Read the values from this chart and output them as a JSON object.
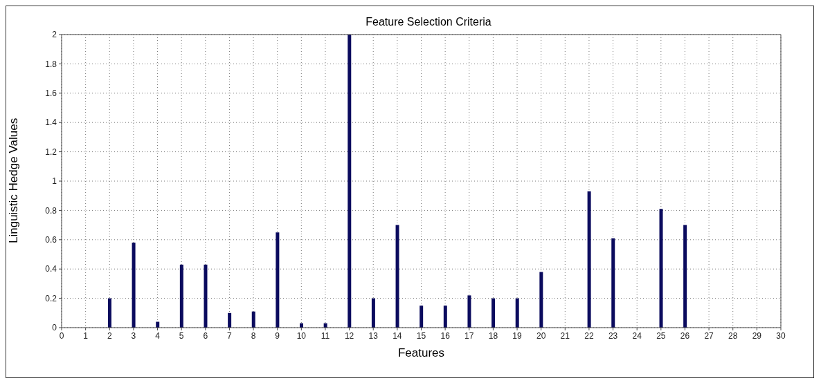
{
  "chart_data": {
    "type": "bar",
    "title": "Feature Selection Criteria",
    "xlabel": "Features",
    "ylabel": "Linguistic Hedge Values",
    "x": [
      2,
      3,
      4,
      5,
      6,
      7,
      8,
      9,
      10,
      11,
      12,
      13,
      14,
      15,
      16,
      17,
      18,
      19,
      20,
      22,
      23,
      25,
      26
    ],
    "values": [
      0.2,
      0.58,
      0.04,
      0.43,
      0.43,
      0.1,
      0.11,
      0.65,
      0.03,
      0.03,
      2.0,
      0.2,
      0.7,
      0.15,
      0.15,
      0.22,
      0.2,
      0.2,
      0.38,
      0.93,
      0.61,
      0.81,
      0.7
    ],
    "color": "#0b0b5e",
    "xlim": [
      0,
      30
    ],
    "xticks": [
      0,
      1,
      2,
      3,
      4,
      5,
      6,
      7,
      8,
      9,
      10,
      11,
      12,
      13,
      14,
      15,
      16,
      17,
      18,
      19,
      20,
      21,
      22,
      23,
      24,
      25,
      26,
      27,
      28,
      29,
      30
    ],
    "ylim": [
      0,
      2
    ],
    "yticks": [
      0,
      0.2,
      0.4,
      0.6,
      0.8,
      1,
      1.2,
      1.4,
      1.6,
      1.8,
      2
    ],
    "grid": true,
    "line_style": "dotted"
  }
}
